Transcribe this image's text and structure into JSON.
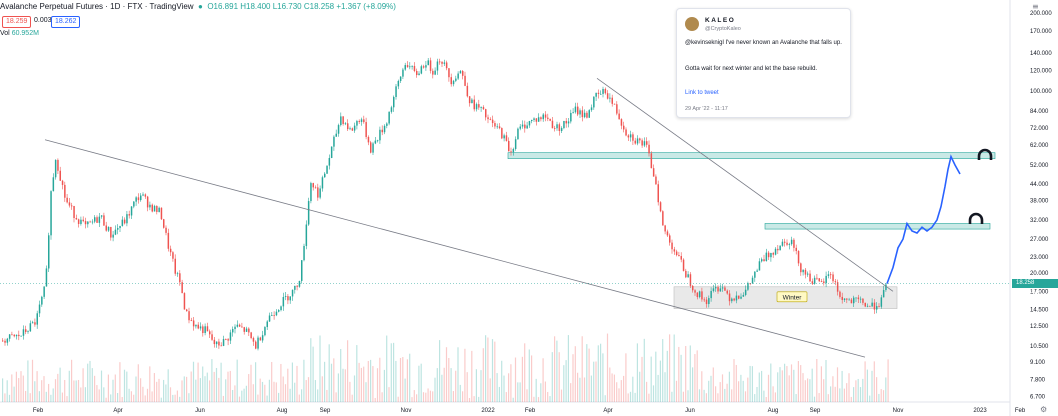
{
  "header": {
    "title": "Avalanche Perpetual Futures · 1D · FTX · TradingView",
    "ohlc": "O16.891 H18.400 L16.730 C18.258 +1.367 (+8.09%)"
  },
  "trade": {
    "sell": "18.259",
    "spread": "0.003",
    "buy": "18.262"
  },
  "volume": {
    "label": "Vol",
    "value": "60.952M"
  },
  "price_tag": {
    "price": "18.258",
    "countdown": "01:03:16"
  },
  "tweet": {
    "name": "KALEO",
    "handle": "@CryptoKaleo",
    "text1": "@kevinseknigl I've never known an Avalanche that falls up.",
    "text2": "Gotta wait for next winter and let the base rebuild.",
    "link": "Link to tweet",
    "date": "29 Apr '22 - 11:17"
  },
  "annotation": {
    "winter": "Winter"
  },
  "colors": {
    "up": "#26a69a",
    "down": "#ef5350",
    "projection": "#2962ff",
    "zone": "#b2dfdb",
    "winter": "#e0e0e0"
  },
  "chart_data": {
    "type": "candlestick",
    "scale": "log",
    "x_ticks": [
      "Feb",
      "Apr",
      "Jun",
      "Aug",
      "Sep",
      "Nov",
      "2022",
      "Feb",
      "Apr",
      "Jun",
      "Aug",
      "Sep",
      "Nov",
      "2023",
      "Feb"
    ],
    "y_ticks": [
      200,
      170,
      140,
      120,
      100,
      84,
      72,
      62,
      52,
      44,
      38,
      32,
      27,
      23,
      20,
      17,
      14.5,
      12.5,
      10.5,
      9.1,
      7.8,
      6.7
    ],
    "y_range": [
      6.5,
      220
    ],
    "path_x": [
      0,
      20,
      35,
      45,
      50,
      55,
      65,
      75,
      85,
      100,
      110,
      125,
      135,
      140,
      150,
      160,
      168,
      175,
      180,
      185,
      195,
      205,
      215,
      225,
      235,
      245,
      255,
      262,
      268,
      275,
      285,
      295,
      300,
      305,
      310,
      318,
      325,
      330,
      340,
      350,
      360,
      370,
      385,
      395,
      405,
      415,
      425,
      432,
      440,
      450,
      460,
      470,
      480,
      490,
      500,
      510,
      517,
      525,
      535,
      545,
      555,
      565,
      575,
      585,
      595,
      605,
      615,
      625,
      635,
      645,
      655,
      662,
      668,
      675,
      685,
      695,
      705,
      712,
      720,
      730,
      745,
      760,
      770,
      780,
      790,
      800,
      810,
      820,
      830,
      840,
      850,
      860,
      870,
      880,
      887
    ],
    "path_price": [
      11,
      11.5,
      13,
      18,
      40,
      56,
      38,
      33,
      30,
      33,
      28,
      32,
      38,
      40,
      36,
      34,
      25,
      20,
      18,
      14,
      12.5,
      12,
      10.5,
      11,
      12.5,
      12,
      10.5,
      12,
      13.5,
      14.5,
      16,
      17.5,
      20,
      30,
      45,
      40,
      50,
      58,
      80,
      70,
      80,
      60,
      75,
      100,
      130,
      115,
      130,
      120,
      135,
      110,
      120,
      90,
      85,
      75,
      70,
      58,
      70,
      75,
      78,
      80,
      72,
      75,
      85,
      80,
      95,
      100,
      85,
      70,
      65,
      62,
      45,
      30,
      27,
      24,
      20,
      17,
      15.5,
      17,
      18,
      16,
      17,
      22,
      24,
      26,
      27,
      21,
      19,
      18,
      20,
      16,
      15.5,
      15.5,
      14.8,
      15.5,
      18.2
    ],
    "projection_x": [
      887,
      893,
      898,
      903,
      907,
      912,
      917,
      922,
      927,
      932,
      937,
      941,
      945,
      948,
      951,
      955,
      960
    ],
    "projection_price": [
      18.2,
      21,
      25,
      27,
      31,
      29,
      28.5,
      30,
      29,
      30,
      32,
      36,
      43,
      50,
      56,
      52,
      48
    ],
    "zones": [
      {
        "name": "upper",
        "price_top": 58,
        "price_bottom": 55,
        "x_start": 508,
        "x_end": 995
      },
      {
        "name": "middle",
        "price_top": 31,
        "price_bottom": 29.5,
        "x_start": 765,
        "x_end": 990
      }
    ],
    "winter_box": {
      "price_top": 17.7,
      "price_bottom": 14.6,
      "x_start": 674,
      "x_end": 897
    },
    "trendlines": [
      {
        "x1": 45,
        "p1": 65,
        "x2": 865,
        "p2": 9.5
      },
      {
        "x1": 597,
        "p1": 112,
        "x2": 893,
        "p2": 17
      }
    ],
    "current_price": 18.258
  }
}
